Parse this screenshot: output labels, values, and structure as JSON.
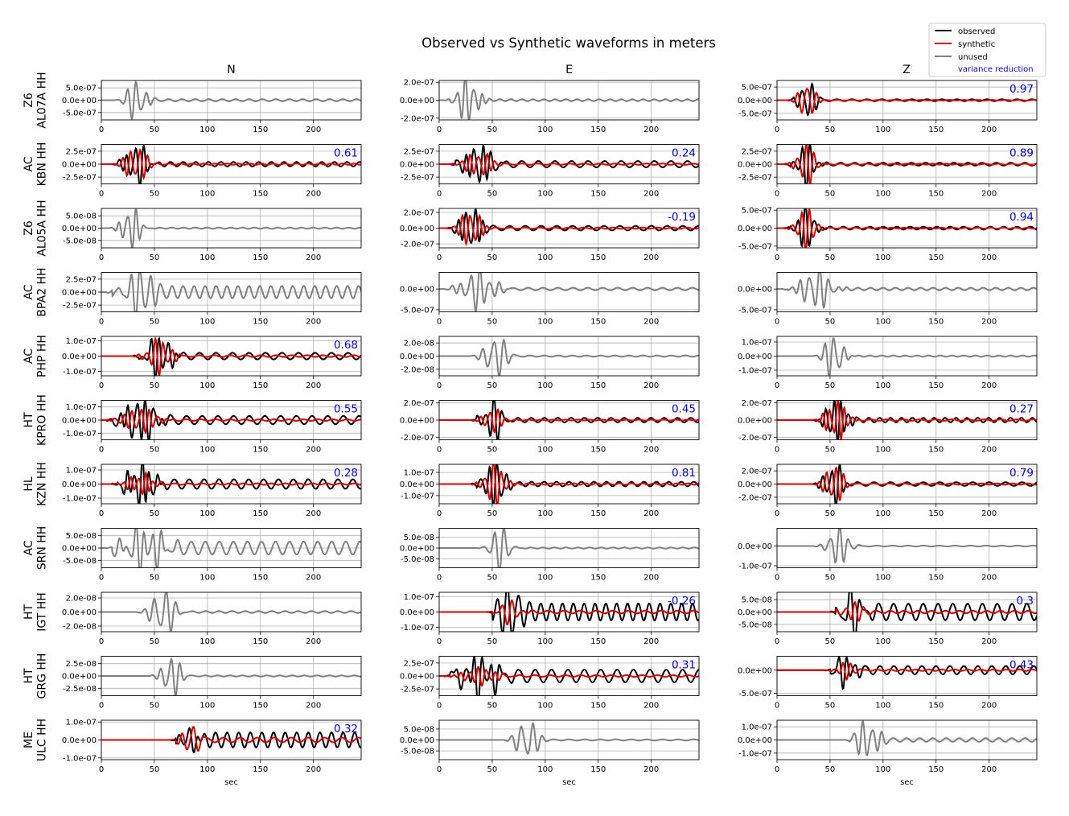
{
  "chart_data": {
    "type": "line",
    "title": "Observed vs Synthetic waveforms in meters",
    "xlabel": "sec",
    "xlim": [
      0,
      245
    ],
    "xticks": [
      "0",
      "50",
      "100",
      "150",
      "200"
    ],
    "grid": true,
    "legend": {
      "placement": "top-right",
      "entries": [
        {
          "label": "observed",
          "color": "#000000"
        },
        {
          "label": "synthetic",
          "color": "#e00000"
        },
        {
          "label": "unused",
          "color": "#808080"
        },
        {
          "label": "variance reduction",
          "color": "#0000ff",
          "text_only": true
        }
      ]
    },
    "components": [
      "N",
      "E",
      "Z"
    ],
    "stations": [
      {
        "network": "Z6",
        "station": "AL07A HH",
        "panels": [
          {
            "status": "unused",
            "ticks": [
              "5.0e-07",
              "0.0e+00",
              "-5.0e-07"
            ],
            "ylim": [
              -8e-07,
              8e-07
            ],
            "tickvals": [
              5e-07,
              0,
              -5e-07
            ],
            "amp": 7.5e-07,
            "t0": 18,
            "dur": 35,
            "per": 9,
            "coda": 0.06,
            "seed": 1
          },
          {
            "status": "unused",
            "ticks": [
              "2.0e-07",
              "0.0e+00",
              "-2.0e-07"
            ],
            "ylim": [
              -2.2e-07,
              2.2e-07
            ],
            "tickvals": [
              2e-07,
              0,
              -2e-07
            ],
            "amp": 2.2e-07,
            "t0": 10,
            "dur": 40,
            "per": 8,
            "coda": 0.05,
            "seed": 2
          },
          {
            "status": "used",
            "vr": "0.97",
            "ticks": [
              "5.0e-07",
              "0.0e+00",
              "-5.0e-07"
            ],
            "ylim": [
              -7.5e-07,
              7.5e-07
            ],
            "tickvals": [
              5e-07,
              0,
              -5e-07
            ],
            "amp": 7e-07,
            "t0": 15,
            "dur": 30,
            "per": 9,
            "coda": 0.05,
            "syn_scale": 0.95,
            "seed": 3
          }
        ]
      },
      {
        "network": "AC",
        "station": "KBN HH",
        "panels": [
          {
            "status": "used",
            "vr": "0.61",
            "ticks": [
              "2.5e-07",
              "0.0e+00",
              "-2.5e-07"
            ],
            "ylim": [
              -3.8e-07,
              3.8e-07
            ],
            "tickvals": [
              2.5e-07,
              0,
              -2.5e-07
            ],
            "amp": 3.6e-07,
            "t0": 15,
            "dur": 40,
            "per": 8,
            "coda": 0.12,
            "syn_scale": 0.85,
            "seed": 4
          },
          {
            "status": "used",
            "vr": "0.24",
            "ticks": [
              "2.5e-07",
              "0.0e+00",
              "-2.5e-07"
            ],
            "ylim": [
              -3.8e-07,
              3.8e-07
            ],
            "tickvals": [
              2.5e-07,
              0,
              -2.5e-07
            ],
            "amp": 3.4e-07,
            "t0": 15,
            "dur": 50,
            "per": 8,
            "coda": 0.18,
            "syn_scale": 0.6,
            "seed": 5
          },
          {
            "status": "used",
            "vr": "0.89",
            "ticks": [
              "2.5e-07",
              "0.0e+00",
              "-2.5e-07"
            ],
            "ylim": [
              -3.8e-07,
              3.8e-07
            ],
            "tickvals": [
              2.5e-07,
              0,
              -2.5e-07
            ],
            "amp": 3.5e-07,
            "t0": 12,
            "dur": 35,
            "per": 8,
            "coda": 0.08,
            "syn_scale": 0.95,
            "seed": 6
          }
        ]
      },
      {
        "network": "Z6",
        "station": "AL05A HH",
        "panels": [
          {
            "status": "unused",
            "ticks": [
              "5.0e-08",
              "0.0e+00",
              "-5.0e-08"
            ],
            "ylim": [
              -8e-08,
              8e-08
            ],
            "tickvals": [
              5e-08,
              0,
              -5e-08
            ],
            "amp": 7.5e-08,
            "t0": 12,
            "dur": 35,
            "per": 8,
            "coda": 0.03,
            "seed": 7
          },
          {
            "status": "used",
            "vr": "-0.19",
            "ticks": [
              "2.0e-07",
              "0.0e+00",
              "-2.0e-07"
            ],
            "ylim": [
              -2.5e-07,
              2.5e-07
            ],
            "tickvals": [
              2e-07,
              0,
              -2e-07
            ],
            "amp": 2.4e-07,
            "t0": 12,
            "dur": 40,
            "per": 8,
            "coda": 0.12,
            "syn_scale": 0.85,
            "seed": 8
          },
          {
            "status": "used",
            "vr": "0.94",
            "ticks": [
              "5.0e-07",
              "0.0e+00",
              "-5.0e-07"
            ],
            "ylim": [
              -5.5e-07,
              5.5e-07
            ],
            "tickvals": [
              5e-07,
              0,
              -5e-07
            ],
            "amp": 5e-07,
            "t0": 12,
            "dur": 35,
            "per": 8,
            "coda": 0.08,
            "syn_scale": 0.95,
            "seed": 9
          }
        ]
      },
      {
        "network": "AC",
        "station": "BPA2 HH",
        "panels": [
          {
            "status": "unused",
            "ticks": [
              "2.5e-07",
              "0.0e+00",
              "-2.5e-07"
            ],
            "ylim": [
              -3.8e-07,
              3.8e-07
            ],
            "tickvals": [
              2.5e-07,
              0,
              -2.5e-07
            ],
            "amp": 3.4e-07,
            "t0": 10,
            "dur": 55,
            "per": 9,
            "coda": 0.35,
            "seed": 10
          },
          {
            "status": "unused",
            "ticks": [
              "0.0e+00",
              "-5.0e-07"
            ],
            "ylim": [
              -5.5e-07,
              4e-07
            ],
            "tickvals": [
              0,
              -5e-07
            ],
            "amp": 4e-07,
            "t0": 10,
            "dur": 60,
            "per": 9,
            "coda": 0.08,
            "seed": 11
          },
          {
            "status": "unused",
            "ticks": [
              "0.0e+00",
              "-5.0e-07"
            ],
            "ylim": [
              -5.5e-07,
              4e-07
            ],
            "tickvals": [
              0,
              -5e-07
            ],
            "amp": 4e-07,
            "t0": 10,
            "dur": 60,
            "per": 9,
            "coda": 0.08,
            "seed": 12
          }
        ]
      },
      {
        "network": "AC",
        "station": "PHP HH",
        "panels": [
          {
            "status": "used",
            "vr": "0.68",
            "ticks": [
              "1.0e-07",
              "0.0e+00",
              "-1.0e-07"
            ],
            "ylim": [
              -1.3e-07,
              1.3e-07
            ],
            "tickvals": [
              1e-07,
              0,
              -1e-07
            ],
            "amp": 1.2e-07,
            "t0": 35,
            "dur": 45,
            "per": 8,
            "coda": 0.18,
            "syn_scale": 0.8,
            "seed": 13
          },
          {
            "status": "unused",
            "ticks": [
              "2.0e-08",
              "0.0e+00",
              "-2.0e-08"
            ],
            "ylim": [
              -3e-08,
              3e-08
            ],
            "tickvals": [
              2e-08,
              0,
              -2e-08
            ],
            "amp": 3e-08,
            "t0": 35,
            "dur": 40,
            "per": 10,
            "coda": 0.03,
            "seed": 14
          },
          {
            "status": "unused",
            "ticks": [
              "1.0e-07",
              "0.0e+00",
              "-1.0e-07"
            ],
            "ylim": [
              -1.4e-07,
              1.4e-07
            ],
            "tickvals": [
              1e-07,
              0,
              -1e-07
            ],
            "amp": 1.4e-07,
            "t0": 38,
            "dur": 35,
            "per": 9,
            "coda": 0.03,
            "seed": 15
          }
        ]
      },
      {
        "network": "HT",
        "station": "KPRO HH",
        "panels": [
          {
            "status": "used",
            "vr": "0.55",
            "ticks": [
              "1.0e-07",
              "0.0e+00",
              "-1.0e-07"
            ],
            "ylim": [
              -1.5e-07,
              1.5e-07
            ],
            "tickvals": [
              1e-07,
              0,
              -1e-07
            ],
            "amp": 1.45e-07,
            "t0": 10,
            "dur": 60,
            "per": 8,
            "coda": 0.22,
            "syn_scale": 0.55,
            "seed": 16
          },
          {
            "status": "used",
            "vr": "0.45",
            "ticks": [
              "2.0e-07",
              "0.0e+00",
              "-2.0e-07"
            ],
            "ylim": [
              -2.3e-07,
              2.3e-07
            ],
            "tickvals": [
              2e-07,
              0,
              -2e-07
            ],
            "amp": 2.2e-07,
            "t0": 35,
            "dur": 35,
            "per": 8,
            "coda": 0.12,
            "syn_scale": 0.55,
            "seed": 17
          },
          {
            "status": "used",
            "vr": "0.27",
            "ticks": [
              "2.0e-07",
              "0.0e+00",
              "-2.0e-07"
            ],
            "ylim": [
              -2.3e-07,
              2.3e-07
            ],
            "tickvals": [
              2e-07,
              0,
              -2e-07
            ],
            "amp": 2.2e-07,
            "t0": 38,
            "dur": 40,
            "per": 7,
            "coda": 0.12,
            "syn_scale": 0.9,
            "seed": 18
          }
        ]
      },
      {
        "network": "HL",
        "station": "KZN HH",
        "panels": [
          {
            "status": "used",
            "vr": "0.28",
            "ticks": [
              "1.0e-07",
              "0.0e+00",
              "-1.0e-07"
            ],
            "ylim": [
              -1.4e-07,
              1.4e-07
            ],
            "tickvals": [
              1e-07,
              0,
              -1e-07
            ],
            "amp": 1.35e-07,
            "t0": 15,
            "dur": 50,
            "per": 7,
            "coda": 0.25,
            "syn_scale": 0.45,
            "seed": 19
          },
          {
            "status": "used",
            "vr": "0.81",
            "ticks": [
              "1.0e-07",
              "0.0e+00",
              "-1.0e-07"
            ],
            "ylim": [
              -1.7e-07,
              1.7e-07
            ],
            "tickvals": [
              1e-07,
              0,
              -1e-07
            ],
            "amp": 1.65e-07,
            "t0": 35,
            "dur": 40,
            "per": 8,
            "coda": 0.12,
            "syn_scale": 0.95,
            "seed": 20
          },
          {
            "status": "used",
            "vr": "0.79",
            "ticks": [
              "2.0e-07",
              "0.0e+00",
              "-2.0e-07"
            ],
            "ylim": [
              -3e-07,
              3e-07
            ],
            "tickvals": [
              2e-07,
              0,
              -2e-07
            ],
            "amp": 2.8e-07,
            "t0": 38,
            "dur": 35,
            "per": 8,
            "coda": 0.1,
            "syn_scale": 0.95,
            "seed": 21
          }
        ]
      },
      {
        "network": "AC",
        "station": "SRN HH",
        "panels": [
          {
            "status": "unused",
            "ticks": [
              "5.0e-08",
              "0.0e+00",
              "-5.0e-08"
            ],
            "ylim": [
              -8e-08,
              8e-08
            ],
            "tickvals": [
              5e-08,
              0,
              -5e-08
            ],
            "amp": 7.5e-08,
            "t0": 10,
            "dur": 70,
            "per": 8,
            "coda": 0.35,
            "seed": 22
          },
          {
            "status": "unused",
            "ticks": [
              "5.0e-08",
              "0.0e+00",
              "-5.0e-08"
            ],
            "ylim": [
              -9e-08,
              9e-08
            ],
            "tickvals": [
              5e-08,
              0,
              -5e-08
            ],
            "amp": 8.5e-08,
            "t0": 42,
            "dur": 35,
            "per": 10,
            "coda": 0.03,
            "seed": 23
          },
          {
            "status": "unused",
            "ticks": [
              "0.0e+00",
              "-1.0e-07"
            ],
            "ylim": [
              -1.1e-07,
              9e-08
            ],
            "tickvals": [
              0,
              -1e-07
            ],
            "amp": 8e-08,
            "t0": 40,
            "dur": 40,
            "per": 9,
            "coda": 0.03,
            "seed": 24
          }
        ]
      },
      {
        "network": "HT",
        "station": "IGT HH",
        "panels": [
          {
            "status": "unused",
            "ticks": [
              "2.0e-08",
              "0.0e+00",
              "-2.0e-08"
            ],
            "ylim": [
              -2.8e-08,
              2.8e-08
            ],
            "tickvals": [
              2e-08,
              0,
              -2e-08
            ],
            "amp": 2.8e-08,
            "t0": 38,
            "dur": 45,
            "per": 10,
            "coda": 0.05,
            "seed": 25
          },
          {
            "status": "used",
            "vr": "-0.26",
            "ticks": [
              "1.0e-07",
              "0.0e+00",
              "-1.0e-07"
            ],
            "ylim": [
              -1.3e-07,
              1.3e-07
            ],
            "tickvals": [
              1e-07,
              0,
              -1e-07
            ],
            "amp": 1.25e-07,
            "t0": 50,
            "dur": 40,
            "per": 10,
            "coda": 0.45,
            "syn_scale": 0.5,
            "seed": 26
          },
          {
            "status": "used",
            "vr": "0.3",
            "ticks": [
              "5.0e-08",
              "0.0e+00",
              "-5.0e-08"
            ],
            "ylim": [
              -8e-08,
              8e-08
            ],
            "tickvals": [
              5e-08,
              0,
              -5e-08
            ],
            "amp": 7.5e-08,
            "t0": 55,
            "dur": 40,
            "per": 9,
            "coda": 0.45,
            "syn_scale": 0.45,
            "seed": 27
          }
        ]
      },
      {
        "network": "HT",
        "station": "GRG HH",
        "panels": [
          {
            "status": "unused",
            "ticks": [
              "2.5e-08",
              "0.0e+00",
              "-2.5e-08"
            ],
            "ylim": [
              -4e-08,
              4e-08
            ],
            "tickvals": [
              2.5e-08,
              0,
              -2.5e-08
            ],
            "amp": 3.8e-08,
            "t0": 50,
            "dur": 35,
            "per": 9,
            "coda": 0.03,
            "seed": 28
          },
          {
            "status": "used",
            "vr": "0.31",
            "ticks": [
              "2.5e-07",
              "0.0e+00",
              "-2.5e-07"
            ],
            "ylim": [
              -3.8e-07,
              3.8e-07
            ],
            "tickvals": [
              2.5e-07,
              0,
              -2.5e-07
            ],
            "amp": 3.5e-07,
            "t0": 10,
            "dur": 65,
            "per": 8,
            "coda": 0.35,
            "syn_scale": 0.4,
            "seed": 29
          },
          {
            "status": "used",
            "vr": "0.43",
            "ticks": [
              "0.0e+00",
              "-5.0e-07"
            ],
            "ylim": [
              -5.5e-07,
              3e-07
            ],
            "tickvals": [
              0,
              -5e-07
            ],
            "amp": 3e-07,
            "t0": 50,
            "dur": 35,
            "per": 8,
            "coda": 0.3,
            "syn_scale": 0.5,
            "seed": 30
          }
        ]
      },
      {
        "network": "ME",
        "station": "ULC HH",
        "panels": [
          {
            "status": "used",
            "vr": "0.32",
            "ticks": [
              "1.0e-07",
              "0.0e+00",
              "-1.0e-07"
            ],
            "ylim": [
              -1.1e-07,
              1.1e-07
            ],
            "tickvals": [
              1e-07,
              0,
              -1e-07
            ],
            "amp": 1.05e-07,
            "t0": 70,
            "dur": 30,
            "per": 10,
            "coda": 0.4,
            "syn_scale": 0.9,
            "seed": 31
          },
          {
            "status": "unused",
            "ticks": [
              "5.0e-08",
              "0.0e+00",
              "-5.0e-08"
            ],
            "ylim": [
              -9e-08,
              9e-08
            ],
            "tickvals": [
              5e-08,
              0,
              -5e-08
            ],
            "amp": 8.5e-08,
            "t0": 65,
            "dur": 40,
            "per": 10,
            "coda": 0.03,
            "seed": 32
          },
          {
            "status": "unused",
            "ticks": [
              "1.0e-07",
              "0.0e+00",
              "-1.0e-07"
            ],
            "ylim": [
              -1.5e-07,
              1.5e-07
            ],
            "tickvals": [
              1e-07,
              0,
              -1e-07
            ],
            "amp": 1.45e-07,
            "t0": 68,
            "dur": 40,
            "per": 9,
            "coda": 0.1,
            "seed": 33
          }
        ]
      }
    ]
  }
}
